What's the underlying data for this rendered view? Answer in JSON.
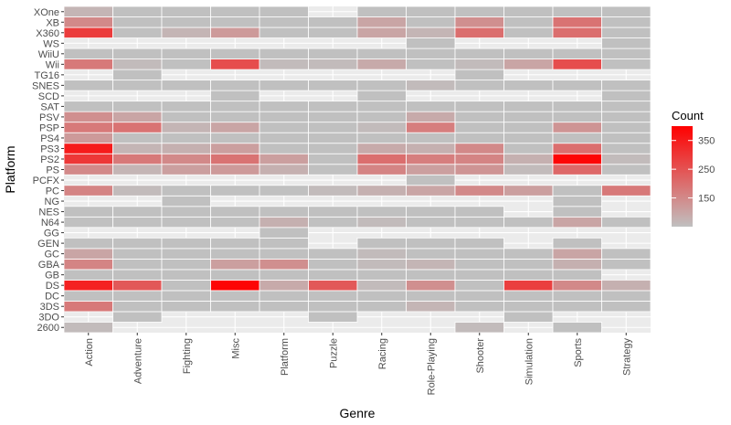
{
  "chart_data": {
    "type": "heatmap",
    "xlabel": "Genre",
    "ylabel": "Platform",
    "legend_title": "Count",
    "legend_placement": "right",
    "legend_ticks": [
      150,
      250,
      350
    ],
    "legend_labels": [
      "150",
      "250",
      "350"
    ],
    "color_range": [
      50,
      400
    ],
    "colors": {
      "low": "#c0c0c0",
      "high": "#ff0000",
      "panel": "#ebebeb",
      "tile_border": "#ffffff",
      "grid": "#ffffff"
    },
    "x": [
      "Action",
      "Adventure",
      "Fighting",
      "Misc",
      "Platform",
      "Puzzle",
      "Racing",
      "Role-Playing",
      "Shooter",
      "Simulation",
      "Sports",
      "Strategy"
    ],
    "y": [
      "2600",
      "3DO",
      "3DS",
      "DC",
      "DS",
      "GB",
      "GBA",
      "GC",
      "GEN",
      "GG",
      "N64",
      "NES",
      "NG",
      "PC",
      "PCFX",
      "PS",
      "PS2",
      "PS3",
      "PS4",
      "PSP",
      "PSV",
      "SAT",
      "SCD",
      "SNES",
      "TG16",
      "Wii",
      "WiiU",
      "WS",
      "X360",
      "XB",
      "XOne"
    ],
    "values": [
      [
        60,
        null,
        null,
        null,
        null,
        null,
        null,
        null,
        60,
        null,
        10,
        null
      ],
      [
        null,
        10,
        null,
        null,
        null,
        10,
        null,
        null,
        null,
        10,
        null,
        null
      ],
      [
        180,
        40,
        10,
        50,
        30,
        20,
        15,
        70,
        10,
        40,
        15,
        10
      ],
      [
        10,
        10,
        10,
        10,
        10,
        10,
        10,
        10,
        10,
        10,
        10,
        10
      ],
      [
        340,
        240,
        40,
        390,
        90,
        240,
        60,
        140,
        40,
        285,
        150,
        80
      ],
      [
        10,
        10,
        10,
        10,
        20,
        10,
        10,
        20,
        10,
        10,
        10,
        null
      ],
      [
        160,
        40,
        20,
        110,
        140,
        50,
        60,
        70,
        40,
        20,
        80,
        10
      ],
      [
        100,
        20,
        50,
        30,
        50,
        10,
        60,
        20,
        50,
        10,
        100,
        10
      ],
      [
        10,
        10,
        10,
        10,
        10,
        null,
        10,
        10,
        10,
        null,
        10,
        null
      ],
      [
        null,
        null,
        null,
        null,
        10,
        null,
        null,
        null,
        null,
        null,
        null,
        null
      ],
      [
        50,
        10,
        30,
        20,
        80,
        10,
        60,
        10,
        10,
        10,
        100,
        10
      ],
      [
        10,
        10,
        10,
        10,
        40,
        10,
        10,
        10,
        10,
        null,
        10,
        null
      ],
      [
        null,
        null,
        10,
        null,
        null,
        null,
        null,
        null,
        null,
        null,
        10,
        null
      ],
      [
        160,
        60,
        10,
        40,
        50,
        60,
        80,
        100,
        150,
        110,
        50,
        180
      ],
      [
        null,
        null,
        null,
        null,
        null,
        null,
        null,
        10,
        null,
        null,
        null,
        null
      ],
      [
        150,
        70,
        110,
        120,
        80,
        40,
        160,
        110,
        130,
        60,
        210,
        30
      ],
      [
        300,
        180,
        150,
        190,
        110,
        30,
        200,
        170,
        160,
        80,
        390,
        60
      ],
      [
        350,
        70,
        80,
        110,
        40,
        20,
        90,
        80,
        150,
        30,
        200,
        30
      ],
      [
        120,
        30,
        30,
        20,
        20,
        10,
        20,
        40,
        50,
        10,
        40,
        10
      ],
      [
        180,
        190,
        70,
        100,
        50,
        40,
        60,
        170,
        40,
        30,
        130,
        40
      ],
      [
        140,
        100,
        30,
        40,
        20,
        10,
        20,
        90,
        30,
        10,
        30,
        10
      ],
      [
        20,
        30,
        30,
        20,
        20,
        20,
        20,
        30,
        20,
        30,
        20,
        20
      ],
      [
        null,
        null,
        null,
        10,
        null,
        null,
        10,
        null,
        null,
        null,
        null,
        10
      ],
      [
        20,
        20,
        30,
        20,
        30,
        20,
        30,
        60,
        20,
        20,
        40,
        20
      ],
      [
        null,
        10,
        null,
        null,
        null,
        null,
        null,
        null,
        10,
        null,
        null,
        null
      ],
      [
        180,
        60,
        40,
        260,
        60,
        60,
        90,
        40,
        60,
        100,
        260,
        20
      ],
      [
        30,
        10,
        20,
        20,
        20,
        10,
        10,
        10,
        20,
        10,
        20,
        10
      ],
      [
        null,
        null,
        null,
        null,
        null,
        null,
        null,
        10,
        null,
        null,
        null,
        10
      ],
      [
        290,
        40,
        70,
        120,
        40,
        10,
        100,
        70,
        200,
        30,
        200,
        20
      ],
      [
        150,
        30,
        50,
        40,
        50,
        10,
        100,
        30,
        140,
        20,
        190,
        20
      ],
      [
        70,
        20,
        20,
        20,
        20,
        null,
        20,
        20,
        50,
        10,
        40,
        10
      ]
    ]
  }
}
